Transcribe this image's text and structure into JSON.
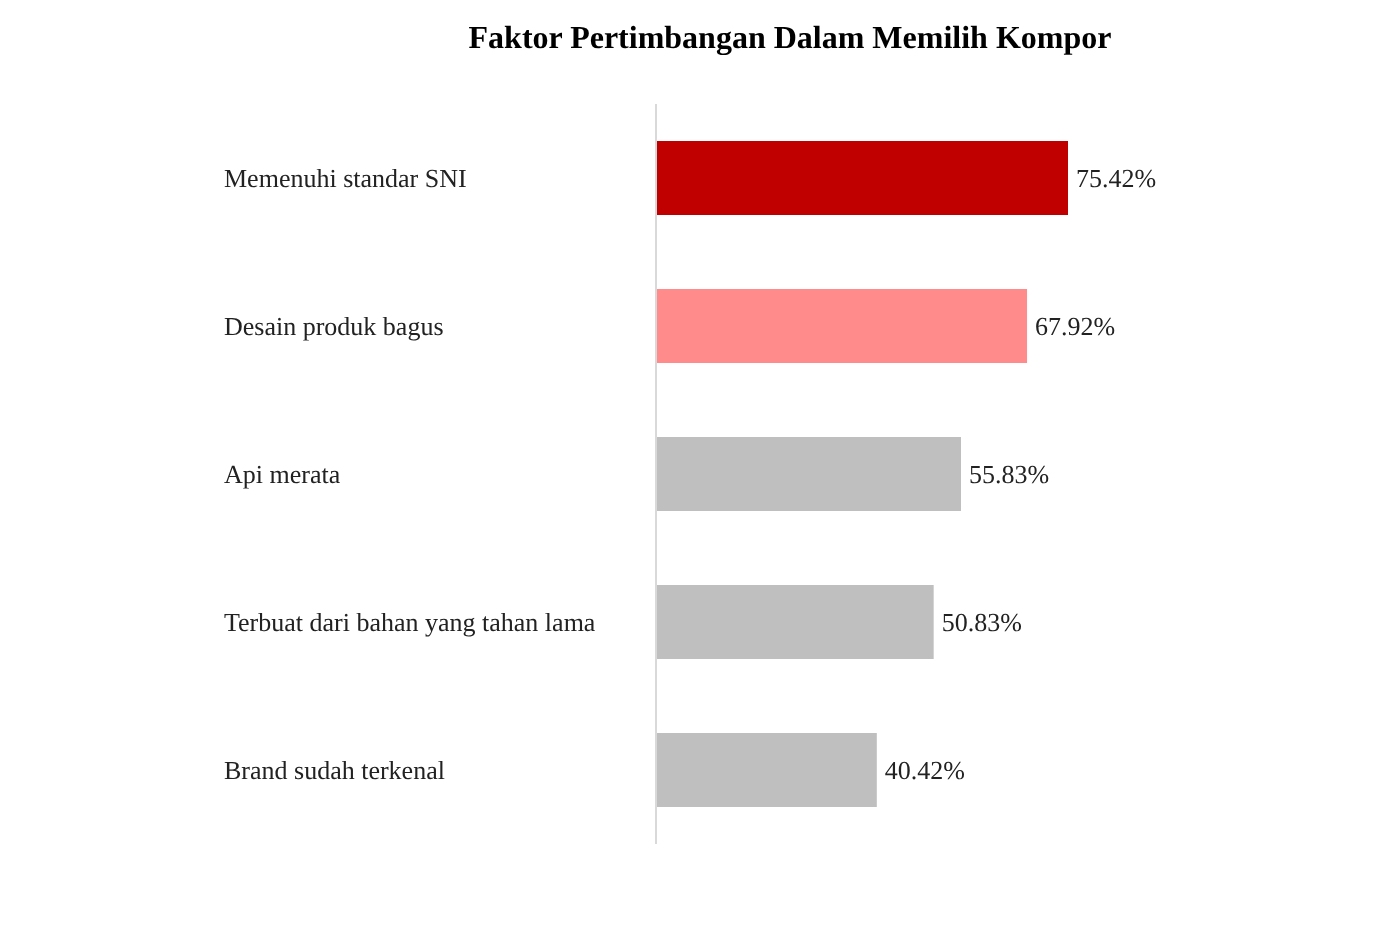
{
  "chart_data": {
    "type": "bar",
    "orientation": "horizontal",
    "title": "Faktor Pertimbangan Dalam Memilih Kompor",
    "categories": [
      "Memenuhi standar SNI",
      "Desain produk bagus",
      "Api merata",
      "Terbuat dari bahan yang tahan lama",
      "Brand sudah terkenal"
    ],
    "values": [
      75.42,
      67.92,
      55.83,
      50.83,
      40.42
    ],
    "colors": [
      "#c00000",
      "#ff8b8b",
      "#bfbfbf",
      "#bfbfbf",
      "#bfbfbf"
    ],
    "value_labels": [
      "75.42%",
      "67.92%",
      "55.83%",
      "50.83%",
      "40.42%"
    ]
  }
}
